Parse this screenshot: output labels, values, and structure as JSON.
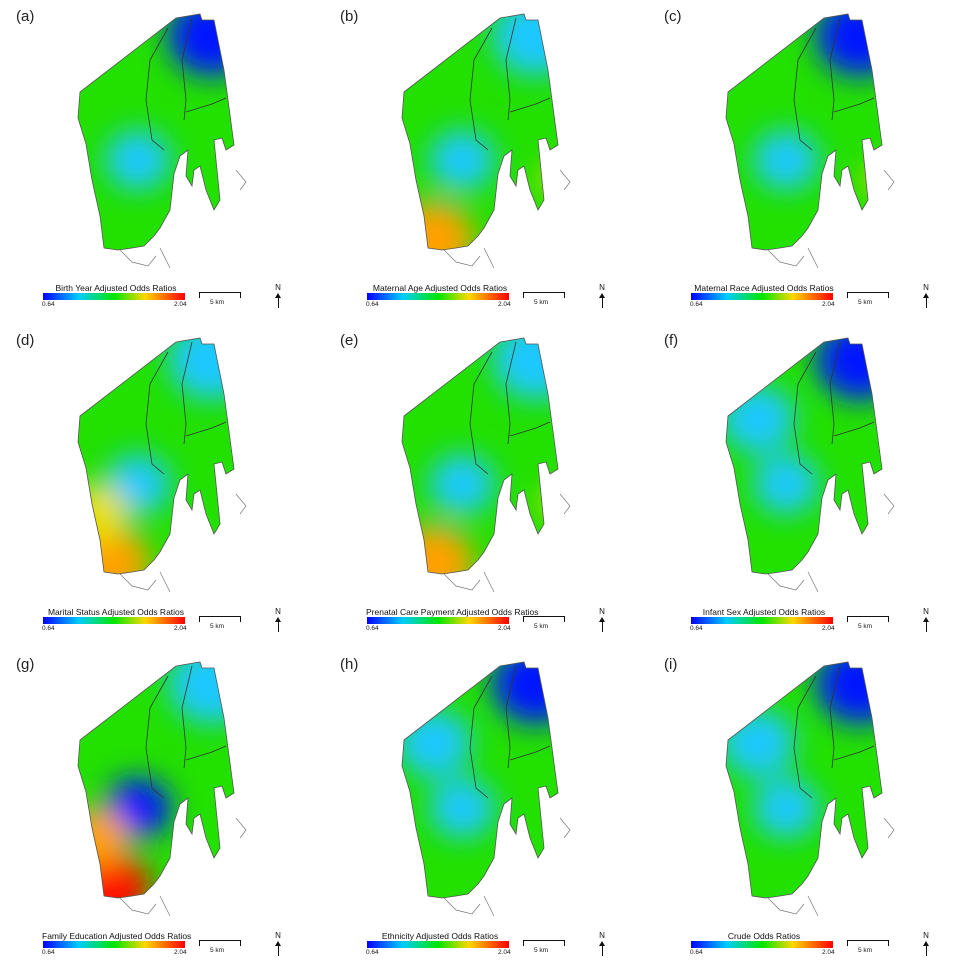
{
  "legend": {
    "min": "0.64",
    "max": "2.04"
  },
  "scale_label": "5 km",
  "north_label": "N",
  "palette": [
    "#0000ff",
    "#00ccff",
    "#00e600",
    "#ffd700",
    "#ff0000"
  ],
  "panels": [
    {
      "letter": "(a)",
      "title": "Birth Year Adjusted Odds Ratios",
      "hotspots": [
        {
          "area": "northeast",
          "level": "low-blue"
        },
        {
          "area": "center",
          "level": "cyan"
        }
      ]
    },
    {
      "letter": "(b)",
      "title": "Maternal Age Adjusted Odds Ratios",
      "hotspots": [
        {
          "area": "northeast",
          "level": "cyan"
        },
        {
          "area": "center",
          "level": "cyan"
        },
        {
          "area": "southwest",
          "level": "orange"
        },
        {
          "area": "southeast",
          "level": "yellow"
        }
      ]
    },
    {
      "letter": "(c)",
      "title": "Maternal Race Adjusted Odds Ratios",
      "hotspots": [
        {
          "area": "northeast",
          "level": "low-blue"
        },
        {
          "area": "center",
          "level": "cyan"
        },
        {
          "area": "southeast",
          "level": "yellow"
        }
      ]
    },
    {
      "letter": "(d)",
      "title": "Marital Status Adjusted Odds Ratios",
      "hotspots": [
        {
          "area": "northeast",
          "level": "cyan"
        },
        {
          "area": "center",
          "level": "cyan"
        },
        {
          "area": "southwest",
          "level": "orange"
        },
        {
          "area": "west",
          "level": "yellow"
        }
      ]
    },
    {
      "letter": "(e)",
      "title": "Prenatal Care Payment Adjusted Odds Ratios",
      "hotspots": [
        {
          "area": "northeast",
          "level": "cyan"
        },
        {
          "area": "center",
          "level": "cyan"
        },
        {
          "area": "southwest",
          "level": "orange"
        },
        {
          "area": "southeast",
          "level": "yellow"
        }
      ]
    },
    {
      "letter": "(f)",
      "title": "Infant Sex Adjusted Odds Ratios",
      "hotspots": [
        {
          "area": "northeast",
          "level": "low-blue"
        },
        {
          "area": "northwest",
          "level": "cyan"
        },
        {
          "area": "center",
          "level": "cyan"
        }
      ]
    },
    {
      "letter": "(g)",
      "title": "Family Education Adjusted Odds Ratios",
      "hotspots": [
        {
          "area": "northeast",
          "level": "cyan"
        },
        {
          "area": "center",
          "level": "low-blue"
        },
        {
          "area": "southwest",
          "level": "red"
        },
        {
          "area": "west",
          "level": "orange"
        }
      ]
    },
    {
      "letter": "(h)",
      "title": "Ethnicity Adjusted Odds Ratios",
      "hotspots": [
        {
          "area": "northeast",
          "level": "low-blue"
        },
        {
          "area": "northwest",
          "level": "cyan"
        },
        {
          "area": "center",
          "level": "cyan"
        }
      ]
    },
    {
      "letter": "(i)",
      "title": "Crude Odds Ratios",
      "hotspots": [
        {
          "area": "northeast",
          "level": "low-blue"
        },
        {
          "area": "northwest",
          "level": "cyan"
        },
        {
          "area": "center",
          "level": "cyan"
        }
      ]
    }
  ]
}
